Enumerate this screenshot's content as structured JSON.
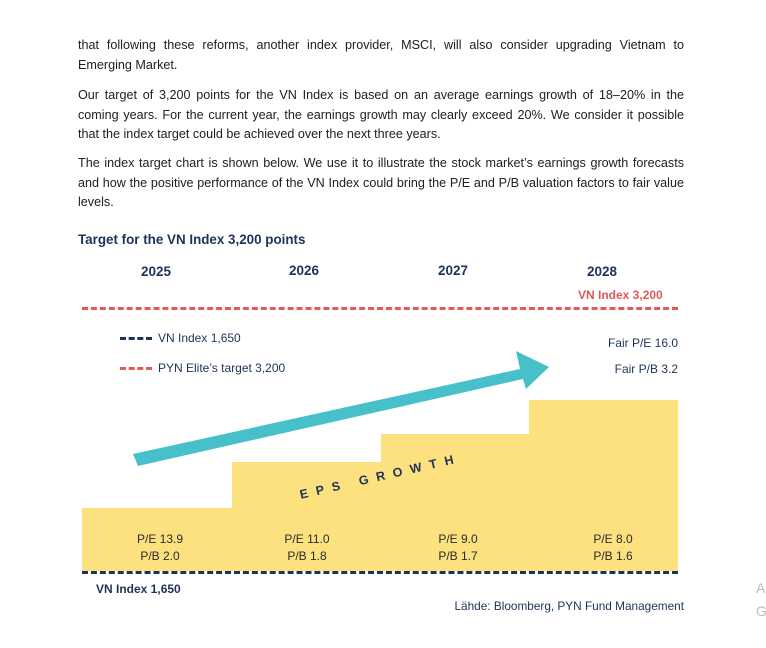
{
  "paragraphs": [
    "that following these reforms, another index provider, MSCI, will also consider upgrading Vietnam to Emerging Market.",
    "Our target of 3,200 points for the VN Index is based on an average earnings growth of 18–20% in the coming years. For the current year, the earnings growth may clearly exceed 20%. We consider it possible that the index target could be achieved over the next three years.",
    "The index target chart is shown below. We use it to illustrate the stock market’s earnings growth forecasts and how the positive performance of the VN Index could bring the P/E and P/B valuation factors to fair value levels."
  ],
  "chart": {
    "title": "Target for the VN Index 3,200 points",
    "years": [
      "2025",
      "2026",
      "2027",
      "2028"
    ],
    "target_label": "VN Index 3,200",
    "legend": [
      {
        "label": "VN Index 1,650",
        "color": "#1d3358"
      },
      {
        "label": "PYN Elite’s target 3,200",
        "color": "#e35d57"
      }
    ],
    "fair_pe": "Fair P/E 16.0",
    "fair_pb": "Fair P/B 3.2",
    "arrow_text": "EPS GROWTH",
    "valuations": [
      {
        "pe": "P/E 13.9",
        "pb": "P/B 2.0"
      },
      {
        "pe": "P/E 11.0",
        "pb": "P/B 1.8"
      },
      {
        "pe": "P/E 9.0",
        "pb": "P/B 1.7"
      },
      {
        "pe": "P/E 8.0",
        "pb": "P/B 1.6"
      }
    ],
    "base_label": "VN Index 1,650",
    "source": "Lähde: Bloomberg, PYN Fund Management",
    "colors": {
      "navy": "#1d3358",
      "red": "#e35d57",
      "step_fill": "#fde17f",
      "arrow": "#47c0c9"
    }
  },
  "edge_chars": [
    "A",
    "G"
  ]
}
